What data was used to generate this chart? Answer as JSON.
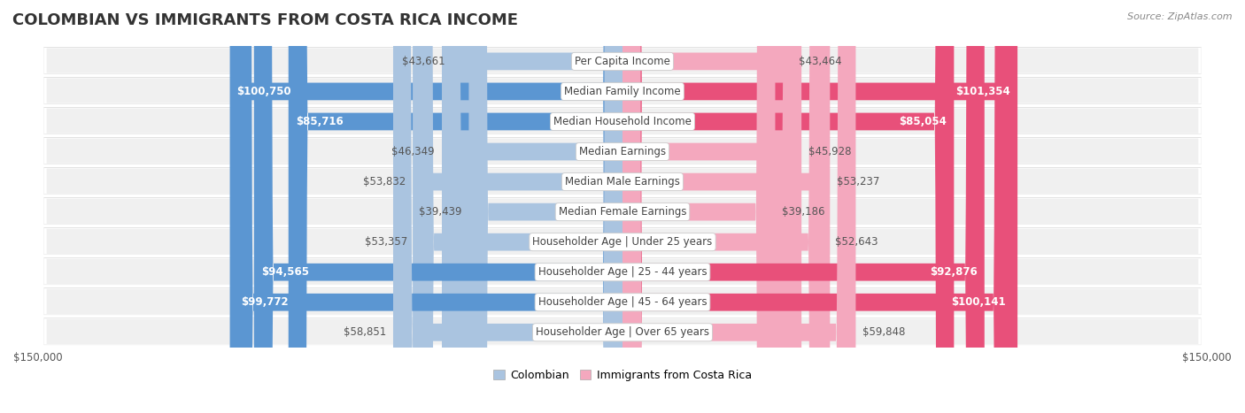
{
  "title": "COLOMBIAN VS IMMIGRANTS FROM COSTA RICA INCOME",
  "source": "Source: ZipAtlas.com",
  "categories": [
    "Per Capita Income",
    "Median Family Income",
    "Median Household Income",
    "Median Earnings",
    "Median Male Earnings",
    "Median Female Earnings",
    "Householder Age | Under 25 years",
    "Householder Age | 25 - 44 years",
    "Householder Age | 45 - 64 years",
    "Householder Age | Over 65 years"
  ],
  "colombian_values": [
    43661,
    100750,
    85716,
    46349,
    53832,
    39439,
    53357,
    94565,
    99772,
    58851
  ],
  "costarica_values": [
    43464,
    101354,
    85054,
    45928,
    53237,
    39186,
    52643,
    92876,
    100141,
    59848
  ],
  "colombian_labels": [
    "$43,661",
    "$100,750",
    "$85,716",
    "$46,349",
    "$53,832",
    "$39,439",
    "$53,357",
    "$94,565",
    "$99,772",
    "$58,851"
  ],
  "costarica_labels": [
    "$43,464",
    "$101,354",
    "$85,054",
    "$45,928",
    "$53,237",
    "$39,186",
    "$52,643",
    "$92,876",
    "$100,141",
    "$59,848"
  ],
  "max_value": 150000,
  "color_colombian_light": "#aac4e0",
  "color_colombian_dark": "#5b96d2",
  "color_costarica_light": "#f4a8be",
  "color_costarica_dark": "#e8507a",
  "color_row_bg": "#f0f0f0",
  "color_row_shadow": "#d8d8d8",
  "threshold": 67000,
  "bar_height": 0.58,
  "title_fontsize": 13,
  "label_fontsize": 8.5,
  "axis_fontsize": 8.5,
  "legend_fontsize": 9
}
